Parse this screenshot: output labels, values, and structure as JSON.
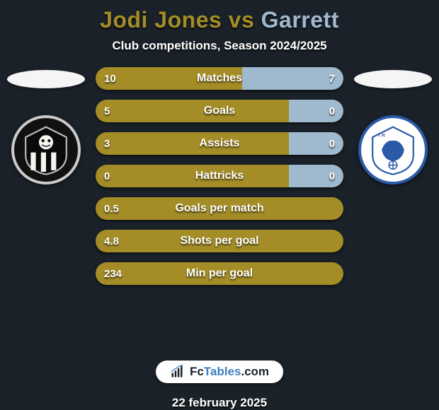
{
  "title": {
    "player1": "Jodi Jones",
    "vs": "vs",
    "player2": "Garrett",
    "player1_color": "#a48d26",
    "player2_color": "#9fb9cf"
  },
  "subtitle": "Club competitions, Season 2024/2025",
  "colors": {
    "background": "#1a2129",
    "track": "#a48d26",
    "player2_fill": "#9fb9cf",
    "text": "#ffffff"
  },
  "bar_style": {
    "height": 32,
    "radius": 16,
    "gap": 14,
    "label_fontsize": 16,
    "value_fontsize": 15
  },
  "rows": [
    {
      "label": "Matches",
      "left": "10",
      "right": "7",
      "left_pct": 59,
      "right_pct": 41
    },
    {
      "label": "Goals",
      "left": "5",
      "right": "0",
      "left_pct": 78,
      "right_pct": 22
    },
    {
      "label": "Assists",
      "left": "3",
      "right": "0",
      "left_pct": 78,
      "right_pct": 22
    },
    {
      "label": "Hattricks",
      "left": "0",
      "right": "0",
      "left_pct": 78,
      "right_pct": 22
    },
    {
      "label": "Goals per match",
      "left": "0.5",
      "right": "",
      "left_pct": 100,
      "right_pct": 0
    },
    {
      "label": "Shots per goal",
      "left": "4.8",
      "right": "",
      "left_pct": 100,
      "right_pct": 0
    },
    {
      "label": "Min per goal",
      "left": "234",
      "right": "",
      "left_pct": 100,
      "right_pct": 0
    }
  ],
  "badges": {
    "left_name": "notts-county-badge",
    "right_name": "tranmere-rovers-badge"
  },
  "brand": {
    "part1": "Fc",
    "part2": "Tables",
    "part3": ".com"
  },
  "date": "22 february 2025"
}
